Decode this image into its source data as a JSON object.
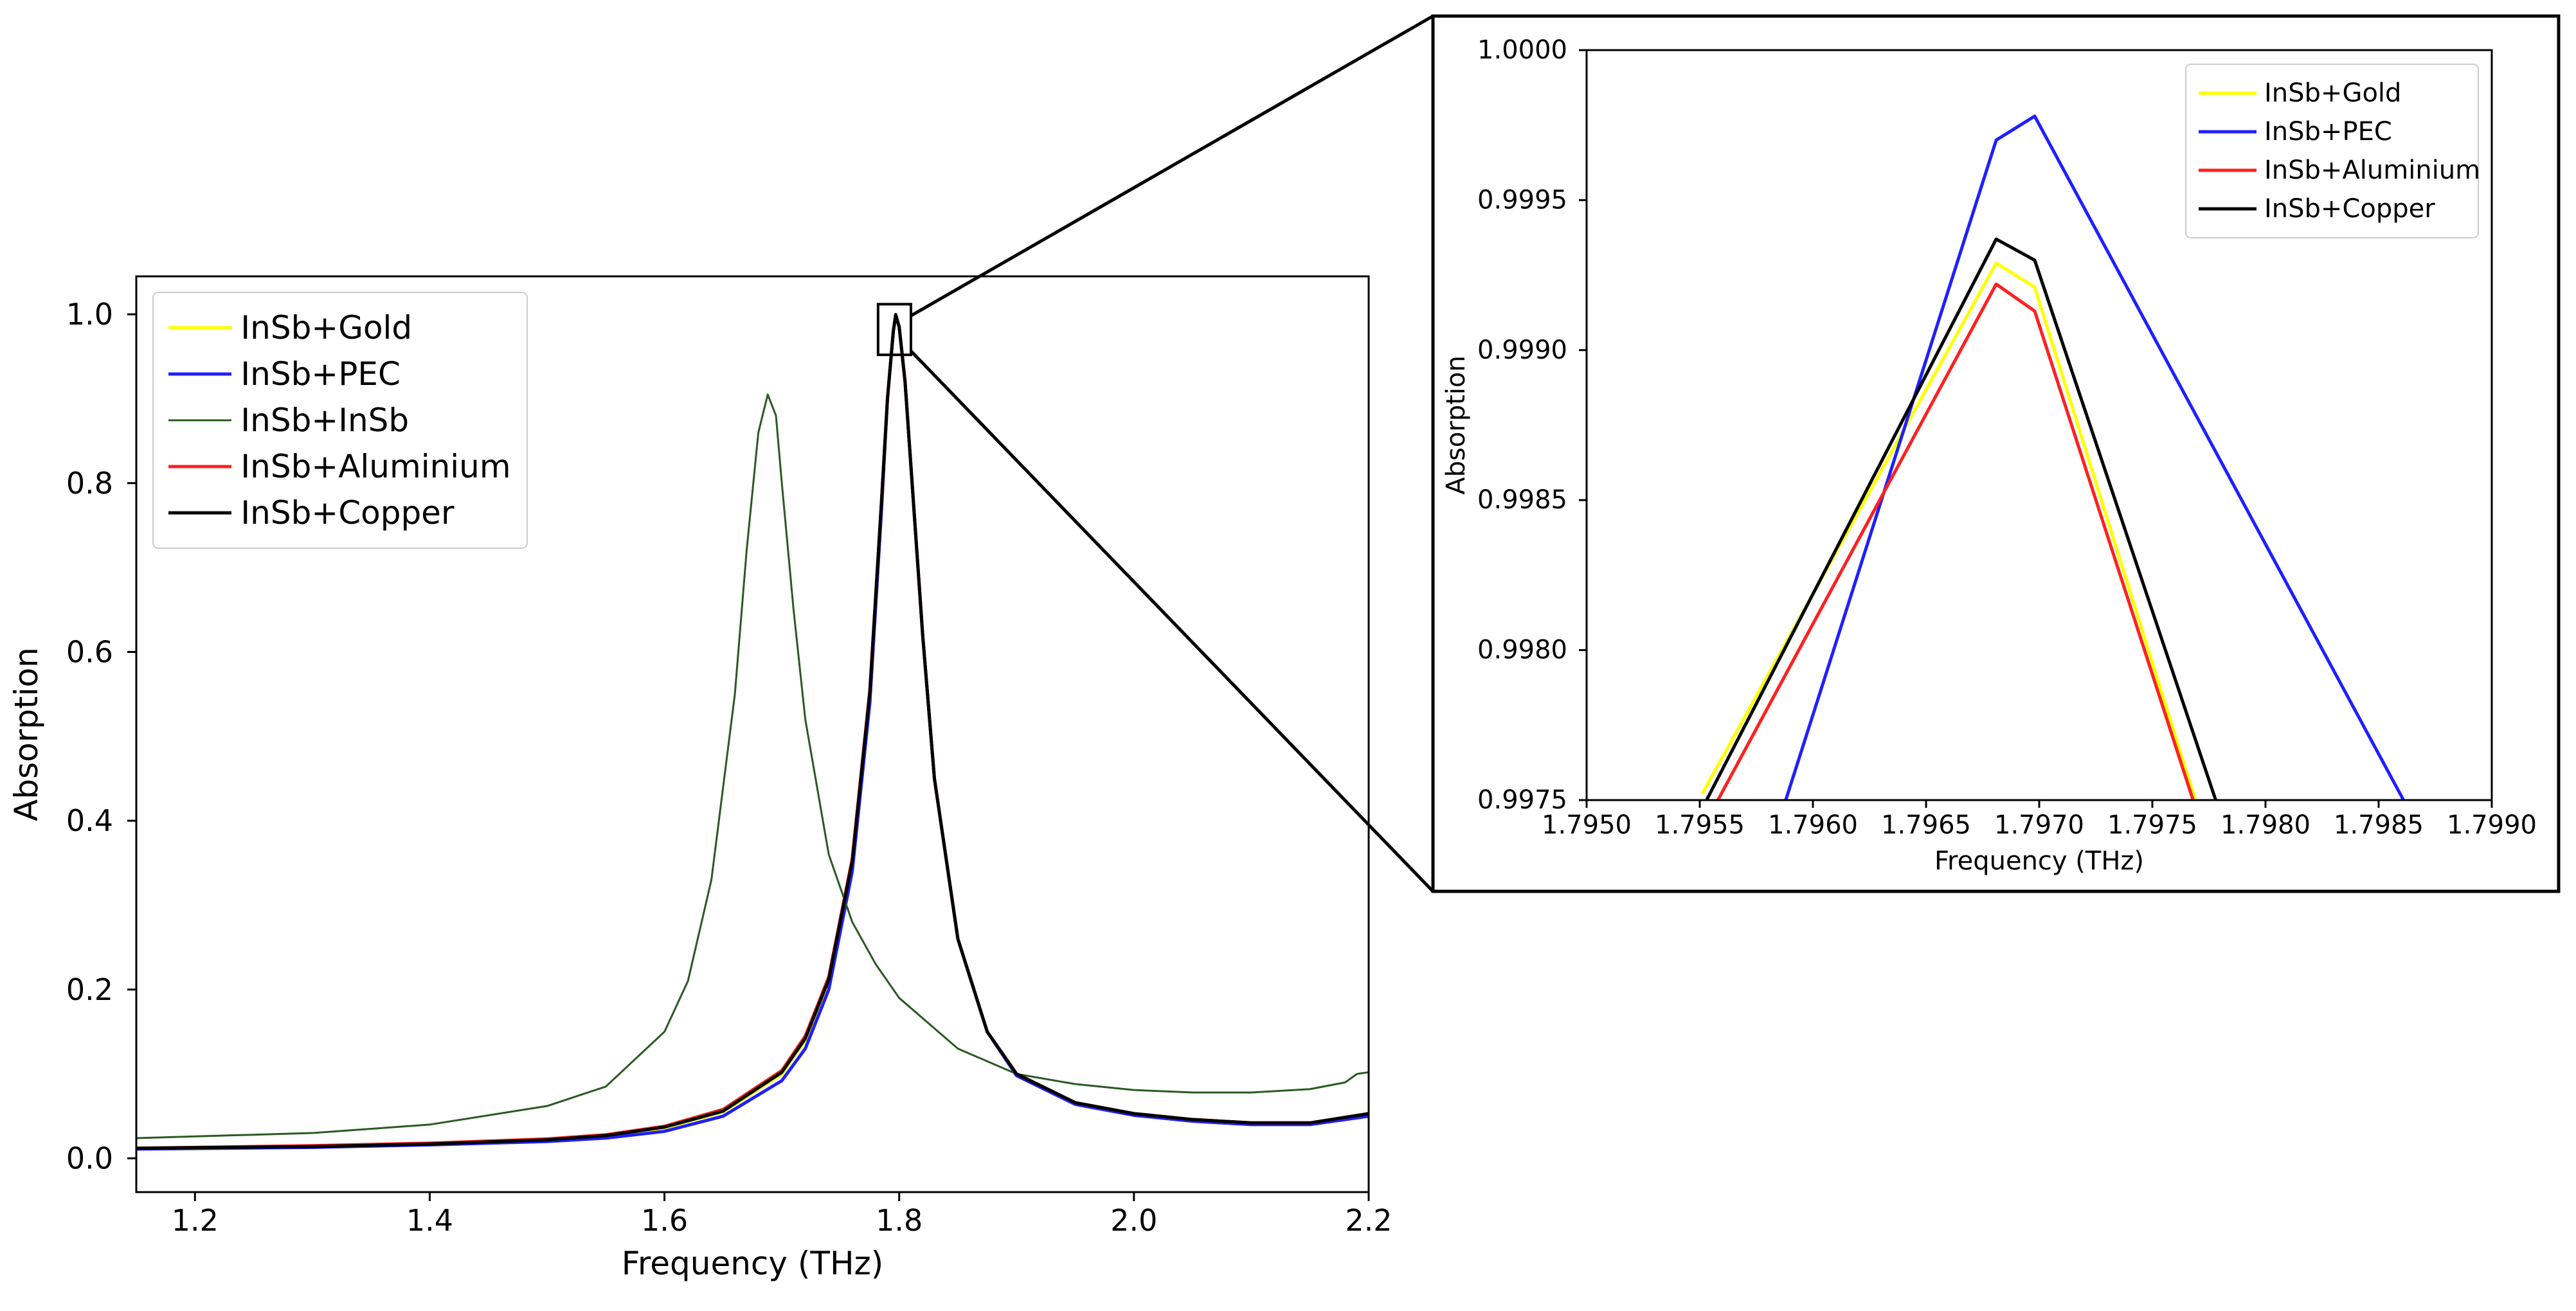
{
  "chart_data": [
    {
      "type": "line",
      "title": "",
      "xlabel": "Frequency (THz)",
      "ylabel": "Absorption",
      "xlim": [
        1.15,
        2.2
      ],
      "ylim": [
        -0.04,
        1.045
      ],
      "xticks": [
        1.2,
        1.4,
        1.6,
        1.8,
        2.0,
        2.2
      ],
      "xtick_labels": [
        "1.2",
        "1.4",
        "1.6",
        "1.8",
        "2.0",
        "2.2"
      ],
      "yticks": [
        0.0,
        0.2,
        0.4,
        0.6,
        0.8,
        1.0
      ],
      "ytick_labels": [
        "0.0",
        "0.2",
        "0.4",
        "0.6",
        "0.8",
        "1.0"
      ],
      "grid": false,
      "legend_position": "top-left",
      "series": [
        {
          "name": "InSb+Gold",
          "color": "#ffff00",
          "x": [
            1.15,
            1.3,
            1.4,
            1.5,
            1.55,
            1.6,
            1.65,
            1.7,
            1.72,
            1.74,
            1.76,
            1.775,
            1.785,
            1.79,
            1.795,
            1.797,
            1.8,
            1.805,
            1.81,
            1.82,
            1.83,
            1.85,
            1.875,
            1.9,
            1.95,
            2.0,
            2.05,
            2.1,
            2.15,
            2.2
          ],
          "y": [
            0.012,
            0.014,
            0.017,
            0.022,
            0.026,
            0.036,
            0.055,
            0.1,
            0.14,
            0.21,
            0.35,
            0.55,
            0.78,
            0.9,
            0.98,
            0.999,
            0.985,
            0.92,
            0.82,
            0.62,
            0.45,
            0.26,
            0.15,
            0.1,
            0.066,
            0.053,
            0.046,
            0.042,
            0.042,
            0.052
          ]
        },
        {
          "name": "InSb+PEC",
          "color": "#1f1fff",
          "x": [
            1.15,
            1.3,
            1.4,
            1.5,
            1.55,
            1.6,
            1.65,
            1.7,
            1.72,
            1.74,
            1.76,
            1.775,
            1.785,
            1.79,
            1.795,
            1.797,
            1.8,
            1.805,
            1.81,
            1.82,
            1.83,
            1.85,
            1.875,
            1.9,
            1.95,
            2.0,
            2.05,
            2.1,
            2.15,
            2.2
          ],
          "y": [
            0.011,
            0.013,
            0.016,
            0.02,
            0.024,
            0.032,
            0.05,
            0.092,
            0.13,
            0.2,
            0.34,
            0.54,
            0.77,
            0.9,
            0.98,
            0.9998,
            0.985,
            0.92,
            0.82,
            0.62,
            0.45,
            0.26,
            0.15,
            0.098,
            0.064,
            0.051,
            0.044,
            0.04,
            0.04,
            0.05
          ]
        },
        {
          "name": "InSb+InSb",
          "color": "#2a5a22",
          "x": [
            1.15,
            1.3,
            1.4,
            1.5,
            1.55,
            1.6,
            1.62,
            1.64,
            1.66,
            1.67,
            1.68,
            1.688,
            1.695,
            1.7,
            1.71,
            1.72,
            1.74,
            1.76,
            1.78,
            1.8,
            1.85,
            1.9,
            1.95,
            2.0,
            2.05,
            2.1,
            2.15,
            2.18,
            2.19,
            2.2
          ],
          "y": [
            0.024,
            0.03,
            0.04,
            0.062,
            0.085,
            0.15,
            0.21,
            0.33,
            0.55,
            0.72,
            0.86,
            0.905,
            0.88,
            0.8,
            0.65,
            0.52,
            0.36,
            0.28,
            0.23,
            0.19,
            0.13,
            0.1,
            0.088,
            0.081,
            0.078,
            0.078,
            0.082,
            0.09,
            0.1,
            0.102
          ]
        },
        {
          "name": "InSb+Aluminium",
          "color": "#ff2020",
          "x": [
            1.15,
            1.3,
            1.4,
            1.5,
            1.55,
            1.6,
            1.65,
            1.7,
            1.72,
            1.74,
            1.76,
            1.775,
            1.785,
            1.79,
            1.795,
            1.797,
            1.8,
            1.805,
            1.81,
            1.82,
            1.83,
            1.85,
            1.875,
            1.9,
            1.95,
            2.0,
            2.05,
            2.1,
            2.15,
            2.2
          ],
          "y": [
            0.012,
            0.015,
            0.018,
            0.023,
            0.028,
            0.038,
            0.058,
            0.104,
            0.145,
            0.215,
            0.355,
            0.555,
            0.78,
            0.9,
            0.98,
            0.9992,
            0.985,
            0.92,
            0.82,
            0.62,
            0.45,
            0.26,
            0.15,
            0.1,
            0.066,
            0.053,
            0.046,
            0.042,
            0.042,
            0.053
          ]
        },
        {
          "name": "InSb+Copper",
          "color": "#000000",
          "x": [
            1.15,
            1.3,
            1.4,
            1.5,
            1.55,
            1.6,
            1.65,
            1.7,
            1.72,
            1.74,
            1.76,
            1.775,
            1.785,
            1.79,
            1.795,
            1.797,
            1.8,
            1.805,
            1.81,
            1.82,
            1.83,
            1.85,
            1.875,
            1.9,
            1.95,
            2.0,
            2.05,
            2.1,
            2.15,
            2.2
          ],
          "y": [
            0.012,
            0.014,
            0.017,
            0.022,
            0.027,
            0.037,
            0.056,
            0.102,
            0.142,
            0.212,
            0.352,
            0.552,
            0.78,
            0.9,
            0.98,
            0.9994,
            0.985,
            0.92,
            0.82,
            0.62,
            0.45,
            0.26,
            0.15,
            0.1,
            0.066,
            0.053,
            0.046,
            0.042,
            0.042,
            0.053
          ]
        }
      ]
    },
    {
      "type": "line",
      "title": "",
      "xlabel": "Frequency (THz)",
      "ylabel": "Absorption",
      "xlim": [
        1.795,
        1.799
      ],
      "ylim": [
        0.9975,
        1.0
      ],
      "xticks": [
        1.795,
        1.7955,
        1.796,
        1.7965,
        1.797,
        1.7975,
        1.798,
        1.7985,
        1.799
      ],
      "xtick_labels": [
        "1.7950",
        "1.7955",
        "1.7960",
        "1.7965",
        "1.7970",
        "1.7975",
        "1.7980",
        "1.7985",
        "1.7990"
      ],
      "yticks": [
        0.9975,
        0.998,
        0.9985,
        0.999,
        0.9995,
        1.0
      ],
      "ytick_labels": [
        "0.9975",
        "0.9980",
        "0.9985",
        "0.9990",
        "0.9995",
        "1.0000"
      ],
      "grid": false,
      "legend_position": "top-right",
      "series": [
        {
          "name": "InSb+Gold",
          "color": "#ffff00",
          "x": [
            1.79551,
            1.79681,
            1.79698,
            1.79769
          ],
          "y": [
            0.99752,
            0.99929,
            0.99921,
            0.9975
          ]
        },
        {
          "name": "InSb+PEC",
          "color": "#1f1fff",
          "x": [
            1.79588,
            1.79681,
            1.79698,
            1.79861
          ],
          "y": [
            0.9975,
            0.9997,
            0.99978,
            0.9975
          ]
        },
        {
          "name": "InSb+Aluminium",
          "color": "#ff2020",
          "x": [
            1.79558,
            1.79681,
            1.79698,
            1.79768
          ],
          "y": [
            0.9975,
            0.99922,
            0.99913,
            0.9975
          ]
        },
        {
          "name": "InSb+Copper",
          "color": "#000000",
          "x": [
            1.79553,
            1.79681,
            1.79698,
            1.79778
          ],
          "y": [
            0.9975,
            0.99937,
            0.9993,
            0.9975
          ]
        }
      ]
    }
  ]
}
